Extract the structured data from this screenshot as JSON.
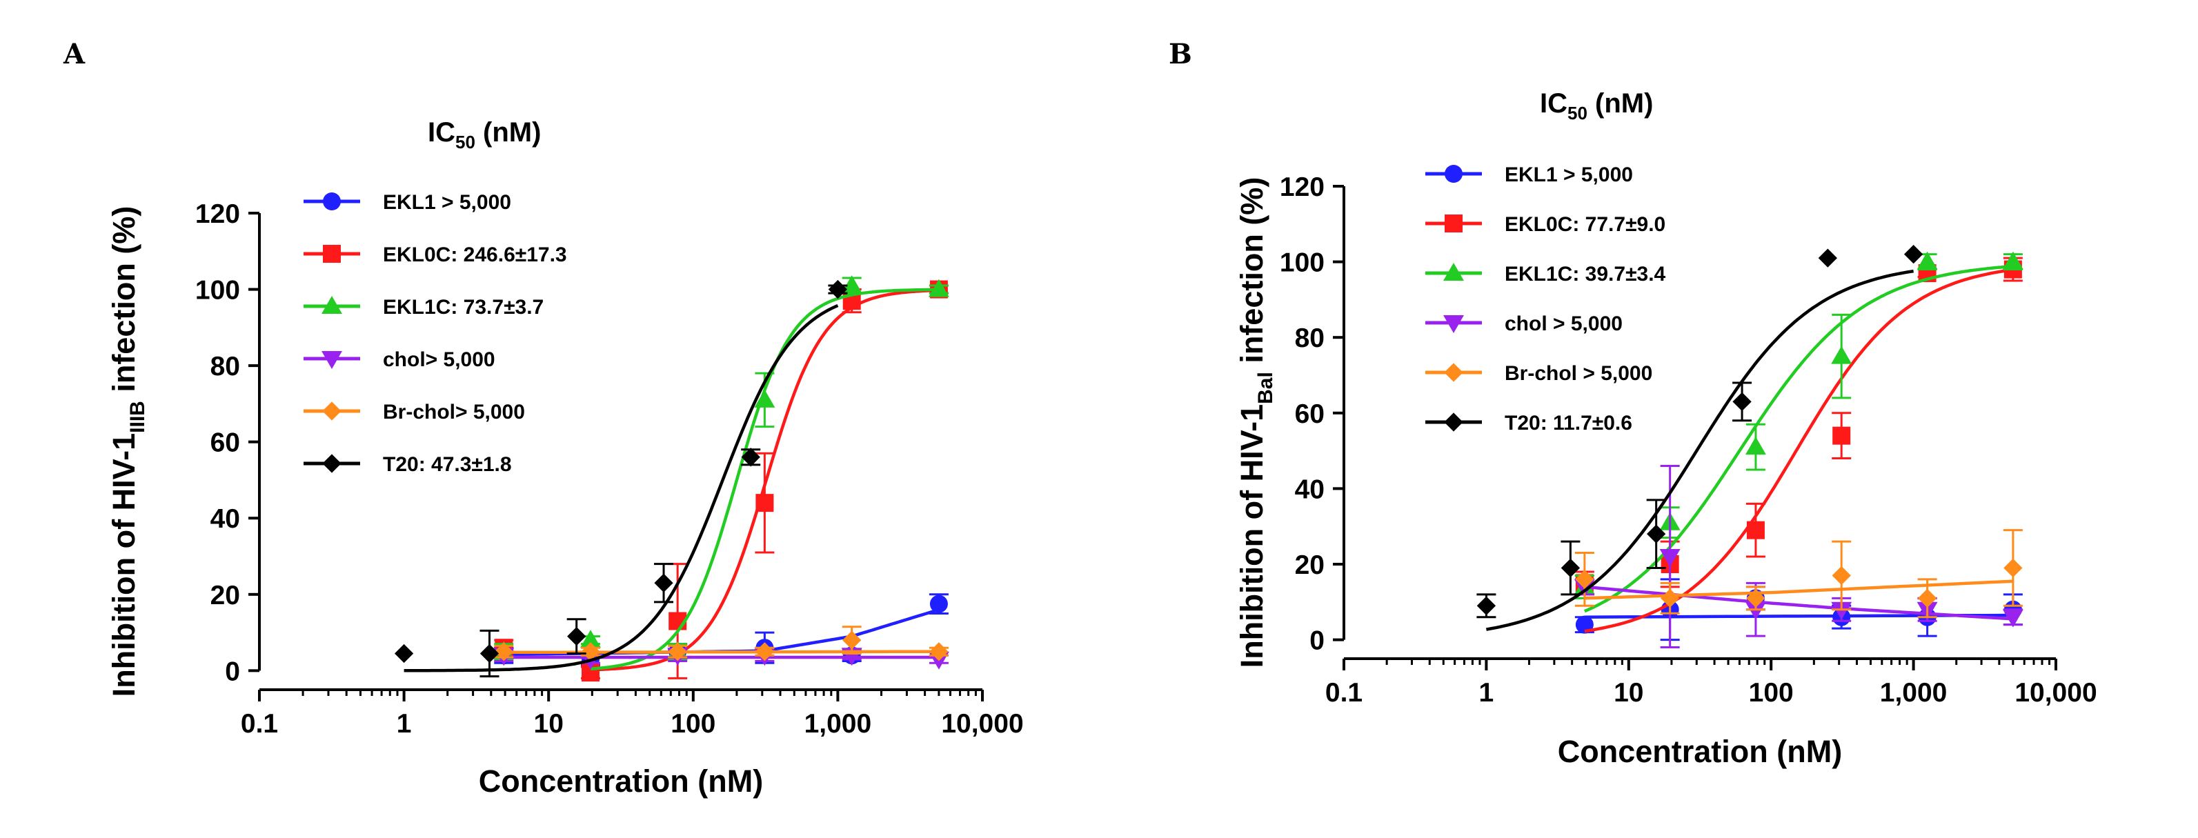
{
  "chart_data": [
    {
      "panel_label": "A",
      "type": "scatter",
      "legend_title": {
        "main": "IC",
        "sub": "50",
        "unit": " (nM)"
      },
      "xlabel": "Concentration (nM)",
      "ylabel": {
        "before": "Inhibition of HIV-1",
        "sub": "IIIB",
        "after": " infection (%)"
      },
      "xscale": "log",
      "xlim": [
        0.1,
        10000
      ],
      "ylim": [
        -5,
        120
      ],
      "xticks": [
        0.1,
        1,
        10,
        100,
        1000,
        10000
      ],
      "xtick_labels": [
        "0.1",
        "1",
        "10",
        "100",
        "1,000",
        "10,000"
      ],
      "yticks": [
        0,
        20,
        40,
        60,
        80,
        100,
        120
      ],
      "ytick_labels": [
        "0",
        "20",
        "40",
        "60",
        "80",
        "100",
        "120"
      ],
      "legend_position": "top-left",
      "series": [
        {
          "name": "EKL1",
          "label": "EKL1 > 5,000",
          "color": "#1f1fff",
          "marker": "circle",
          "x": [
            4.9,
            19.5,
            78,
            312,
            1250,
            5000
          ],
          "y": [
            4,
            3,
            5,
            6,
            4,
            17.5
          ],
          "err": [
            2,
            1.5,
            2,
            4,
            1.5,
            2.5
          ],
          "curve": {
            "kind": "poly",
            "points": [
              [
                4.9,
                4.2
              ],
              [
                312,
                5.2
              ],
              [
                1250,
                9
              ],
              [
                5000,
                16
              ]
            ]
          }
        },
        {
          "name": "EKL0C",
          "label": "EKL0C: 246.6±17.3",
          "color": "#ff1a1a",
          "marker": "square",
          "x": [
            4.9,
            19.5,
            78,
            312,
            1250,
            5000
          ],
          "y": [
            6,
            -0.5,
            13,
            44,
            97,
            100
          ],
          "err": [
            2,
            1.5,
            15,
            13,
            3,
            1
          ],
          "curve": {
            "kind": "hill",
            "ic50": 320,
            "hill": 2.2,
            "top": 100,
            "bottom": 0,
            "from": 19.5,
            "to": 5000
          }
        },
        {
          "name": "EKL1C",
          "label": "EKL1C: 73.7±3.7",
          "color": "#22cc22",
          "marker": "triangle-up",
          "x": [
            4.9,
            19.5,
            78,
            312,
            1250,
            5000
          ],
          "y": [
            5,
            8,
            5,
            71,
            101,
            100
          ],
          "err": [
            2,
            1,
            2,
            7,
            2,
            1
          ],
          "curve": {
            "kind": "hill",
            "ic50": 200,
            "hill": 2.3,
            "top": 100,
            "bottom": 0,
            "from": 19.5,
            "to": 5000
          }
        },
        {
          "name": "chol",
          "label": "chol> 5,000",
          "color": "#9922ee",
          "marker": "triangle-down",
          "x": [
            4.9,
            19.5,
            78,
            312,
            1250,
            5000
          ],
          "y": [
            4,
            3,
            4,
            4,
            4,
            3
          ],
          "err": [
            1.5,
            1,
            1.5,
            1.5,
            1,
            1
          ],
          "curve": {
            "kind": "poly",
            "points": [
              [
                4.9,
                3.5
              ],
              [
                5000,
                3.5
              ]
            ]
          }
        },
        {
          "name": "Br-chol",
          "label": "Br-chol> 5,000",
          "color": "#ff8c1a",
          "marker": "diamond",
          "x": [
            4.9,
            19.5,
            78,
            312,
            1250,
            5000
          ],
          "y": [
            5,
            5,
            5,
            5,
            8,
            5
          ],
          "err": [
            1.5,
            1,
            1.5,
            1,
            3.5,
            1
          ],
          "curve": {
            "kind": "poly",
            "points": [
              [
                4.9,
                4.8
              ],
              [
                5000,
                5
              ]
            ]
          }
        },
        {
          "name": "T20",
          "label": "T20: 47.3±1.8",
          "color": "#000000",
          "marker": "diamond",
          "x": [
            1,
            3.9,
            15.6,
            62.5,
            250,
            1000
          ],
          "y": [
            4.5,
            4.5,
            9,
            23,
            56,
            100
          ],
          "err": [
            0,
            6,
            4.5,
            5,
            2,
            1
          ],
          "curve": {
            "kind": "hill",
            "ic50": 160,
            "hill": 1.7,
            "top": 100,
            "bottom": 0,
            "from": 1,
            "to": 1000
          }
        }
      ]
    },
    {
      "panel_label": "B",
      "type": "scatter",
      "legend_title": {
        "main": "IC",
        "sub": "50",
        "unit": " (nM)"
      },
      "xlabel": "Concentration (nM)",
      "ylabel": {
        "before": "Inhibition of HIV-1",
        "sub": "Bal",
        "after": " infection (%)"
      },
      "xscale": "log",
      "xlim": [
        0.1,
        10000
      ],
      "ylim": [
        -5,
        120
      ],
      "xticks": [
        0.1,
        1,
        10,
        100,
        1000,
        10000
      ],
      "xtick_labels": [
        "0.1",
        "1",
        "10",
        "100",
        "1,000",
        "10,000"
      ],
      "yticks": [
        0,
        20,
        40,
        60,
        80,
        100,
        120
      ],
      "ytick_labels": [
        "0",
        "20",
        "40",
        "60",
        "80",
        "100",
        "120"
      ],
      "legend_position": "top-left",
      "series": [
        {
          "name": "EKL1",
          "label": "EKL1 > 5,000",
          "color": "#1f1fff",
          "marker": "circle",
          "x": [
            4.9,
            19.5,
            78,
            312,
            1250,
            5000
          ],
          "y": [
            4,
            8,
            11,
            6,
            6,
            8
          ],
          "err": [
            2,
            8,
            3,
            3,
            5,
            4
          ],
          "curve": {
            "kind": "poly",
            "points": [
              [
                4.9,
                6
              ],
              [
                5000,
                6.5
              ]
            ]
          }
        },
        {
          "name": "EKL0C",
          "label": "EKL0C: 77.7±9.0",
          "color": "#ff1a1a",
          "marker": "square",
          "x": [
            4.9,
            19.5,
            78,
            312,
            1250,
            5000
          ],
          "y": [
            15,
            20,
            29,
            54,
            97,
            98
          ],
          "err": [
            3,
            6,
            7,
            6,
            1,
            3
          ],
          "curve": {
            "kind": "hill",
            "ic50": 150,
            "hill": 1.1,
            "top": 100,
            "bottom": 0,
            "from": 4.9,
            "to": 5000
          }
        },
        {
          "name": "EKL1C",
          "label": "EKL1C: 39.7±3.4",
          "color": "#22cc22",
          "marker": "triangle-up",
          "x": [
            4.9,
            19.5,
            78,
            312,
            1250,
            5000
          ],
          "y": [
            14,
            31,
            51,
            75,
            100,
            100
          ],
          "err": [
            3,
            4,
            6,
            11,
            2,
            2
          ],
          "curve": {
            "kind": "hill",
            "ic50": 60,
            "hill": 1.0,
            "top": 100,
            "bottom": 0,
            "from": 4.9,
            "to": 5000
          }
        },
        {
          "name": "chol",
          "label": "chol > 5,000",
          "color": "#9922ee",
          "marker": "triangle-down",
          "x": [
            4.9,
            19.5,
            78,
            312,
            1250,
            5000
          ],
          "y": [
            14,
            22,
            8,
            8,
            8,
            6
          ],
          "err": [
            2,
            24,
            7,
            3,
            3,
            2
          ],
          "curve": {
            "kind": "poly",
            "points": [
              [
                4.9,
                14
              ],
              [
                78,
                10
              ],
              [
                312,
                8.3
              ],
              [
                5000,
                5.5
              ]
            ]
          }
        },
        {
          "name": "Br-chol",
          "label": "Br-chol > 5,000",
          "color": "#ff8c1a",
          "marker": "diamond",
          "x": [
            4.9,
            19.5,
            78,
            312,
            1250,
            5000
          ],
          "y": [
            16,
            11,
            11,
            17,
            11,
            19
          ],
          "err": [
            7,
            4,
            3,
            9,
            5,
            10
          ],
          "curve": {
            "kind": "poly",
            "points": [
              [
                4.9,
                11
              ],
              [
                100,
                12.5
              ],
              [
                5000,
                15.5
              ]
            ]
          }
        },
        {
          "name": "T20",
          "label": "T20: 11.7±0.6",
          "color": "#000000",
          "marker": "diamond",
          "x": [
            1,
            3.9,
            15.6,
            62.5,
            250,
            1000
          ],
          "y": [
            9,
            19,
            28,
            63,
            101,
            102
          ],
          "err": [
            3,
            7,
            9,
            5,
            0,
            0
          ],
          "curve": {
            "kind": "hill",
            "ic50": 30,
            "hill": 1.05,
            "top": 100,
            "bottom": 0,
            "from": 1,
            "to": 1000
          }
        }
      ]
    }
  ]
}
